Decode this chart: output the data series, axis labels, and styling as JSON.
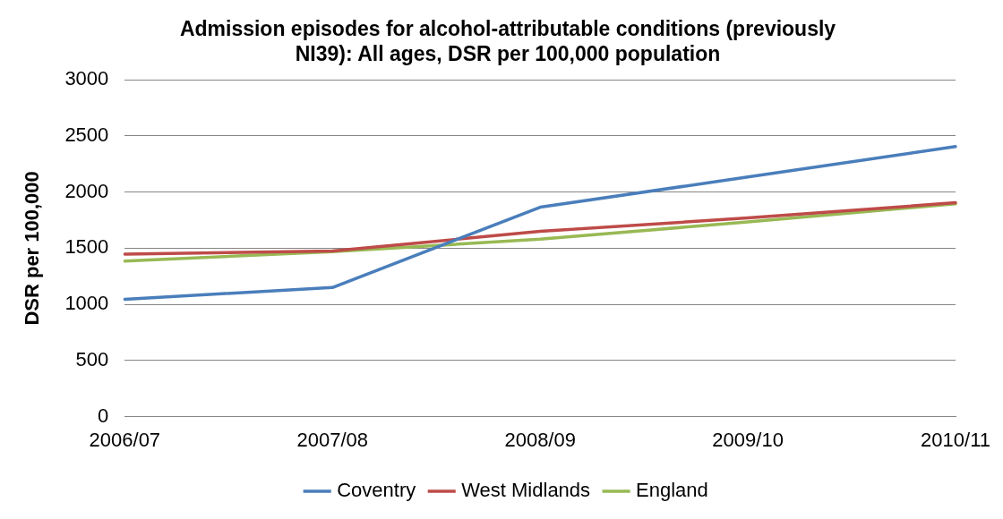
{
  "chart_data": {
    "type": "line",
    "title": "Admission episodes for alcohol-attributable conditions (previously NI39): All ages, DSR per 100,000 population",
    "ylabel": "DSR per 100,000",
    "categories": [
      "2006/07",
      "2007/08",
      "2008/09",
      "2009/10",
      "2010/11"
    ],
    "series": [
      {
        "name": "Coventry",
        "color": "#4a7ebb",
        "values": [
          1045,
          1150,
          1865,
          2135,
          2405
        ]
      },
      {
        "name": "West Midlands",
        "color": "#be4b48",
        "values": [
          1447,
          1475,
          1650,
          1770,
          1905
        ]
      },
      {
        "name": "England",
        "color": "#98b954",
        "values": [
          1385,
          1470,
          1580,
          1735,
          1895
        ]
      }
    ],
    "ylim": [
      0,
      3000
    ],
    "yticks": [
      0,
      500,
      1000,
      1500,
      2000,
      2500,
      3000
    ],
    "grid": "y",
    "legend": "bottom",
    "marker": "none",
    "line_style": "solid"
  }
}
